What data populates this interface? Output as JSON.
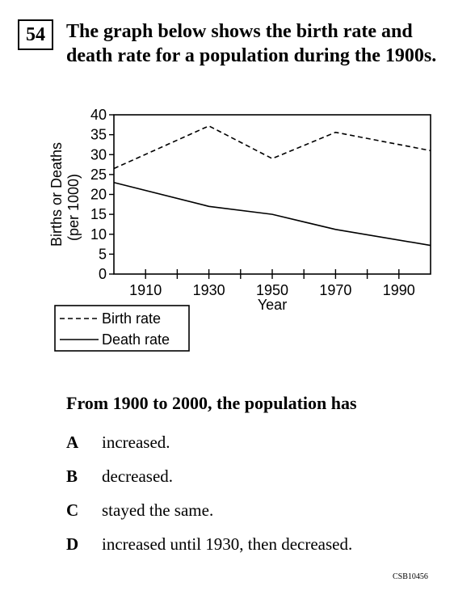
{
  "question": {
    "number": "54",
    "text": "The graph below shows the birth rate and death rate for a population during the 1900s."
  },
  "chart_data": {
    "type": "line",
    "xlabel": "Year",
    "ylabel_line1": "Births or Deaths",
    "ylabel_line2": "(per 1000)",
    "xlim": [
      1900,
      2000
    ],
    "ylim": [
      0,
      40
    ],
    "x_ticks": [
      1910,
      1930,
      1950,
      1970,
      1990
    ],
    "y_ticks": [
      0,
      5,
      10,
      15,
      20,
      25,
      30,
      35,
      40
    ],
    "grid": false,
    "legend_placement": "bottom-left",
    "series": [
      {
        "name": "Birth rate",
        "style": "dashed",
        "color": "#000000",
        "x": [
          1900,
          1930,
          1950,
          1970,
          2000
        ],
        "y": [
          26.5,
          37.2,
          29,
          35.6,
          31
        ]
      },
      {
        "name": "Death rate",
        "style": "solid",
        "color": "#000000",
        "x": [
          1900,
          1930,
          1950,
          1970,
          2000
        ],
        "y": [
          23,
          17,
          15,
          11.2,
          7.2
        ]
      }
    ]
  },
  "prompt": "From 1900 to 2000, the population has",
  "options": [
    {
      "letter": "A",
      "text": "increased."
    },
    {
      "letter": "B",
      "text": "decreased."
    },
    {
      "letter": "C",
      "text": "stayed the same."
    },
    {
      "letter": "D",
      "text": "increased until 1930, then decreased."
    }
  ],
  "code": "CSB10456"
}
